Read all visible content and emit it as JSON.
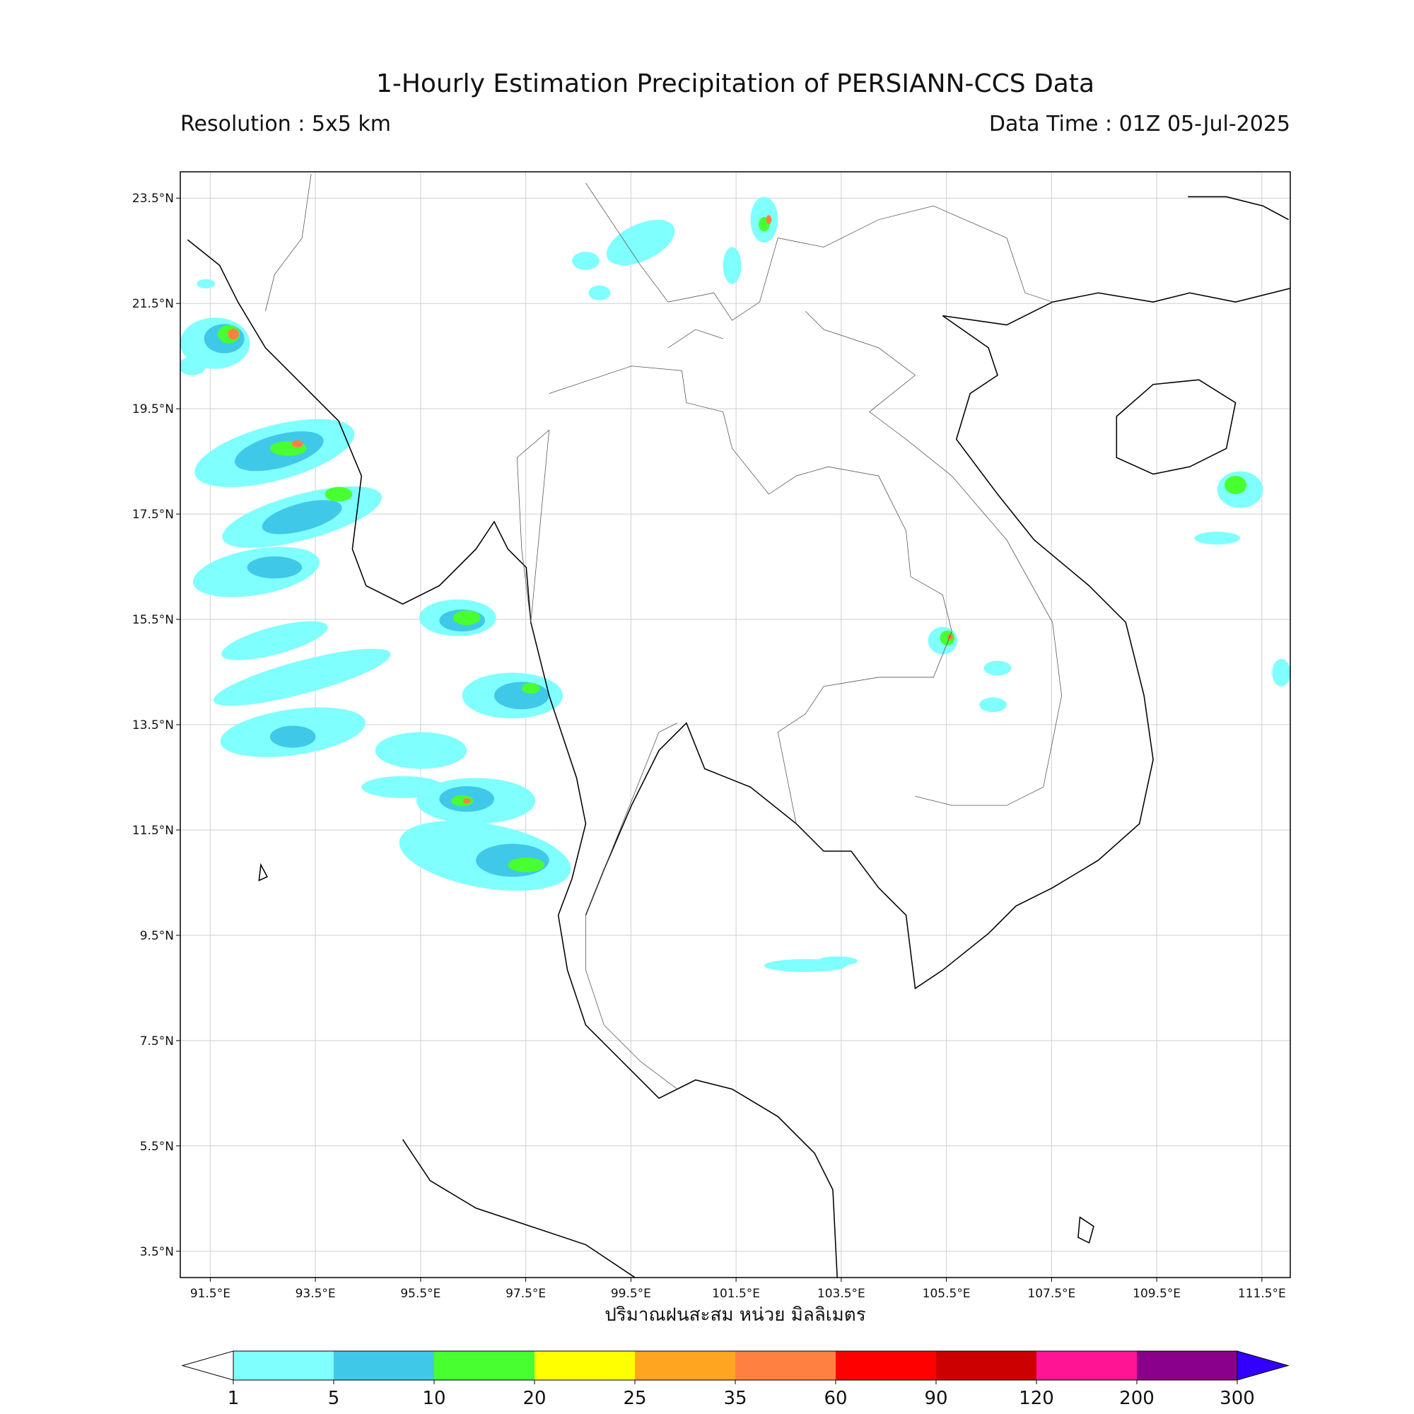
{
  "header": {
    "title": "1-Hourly Estimation Precipitation of PERSIANN-CCS Data",
    "resolution": "Resolution : 5x5 km",
    "data_time": "Data Time : 01Z 05-Jul-2025"
  },
  "map": {
    "xlim": [
      90.93,
      112.04
    ],
    "ylim": [
      3.0,
      24.0
    ],
    "grid": true,
    "xticks": [
      {
        "value": 91.5,
        "label": "91.5°E"
      },
      {
        "value": 93.5,
        "label": "93.5°E"
      },
      {
        "value": 95.5,
        "label": "95.5°E"
      },
      {
        "value": 97.5,
        "label": "97.5°E"
      },
      {
        "value": 99.5,
        "label": "99.5°E"
      },
      {
        "value": 101.5,
        "label": "101.5°E"
      },
      {
        "value": 103.5,
        "label": "103.5°E"
      },
      {
        "value": 105.5,
        "label": "105.5°E"
      },
      {
        "value": 107.5,
        "label": "107.5°E"
      },
      {
        "value": 109.5,
        "label": "109.5°E"
      },
      {
        "value": 111.5,
        "label": "111.5°E"
      }
    ],
    "yticks": [
      {
        "value": 3.5,
        "label": "3.5°N"
      },
      {
        "value": 5.5,
        "label": "5.5°N"
      },
      {
        "value": 7.5,
        "label": "7.5°N"
      },
      {
        "value": 9.5,
        "label": "9.5°N"
      },
      {
        "value": 11.5,
        "label": "11.5°N"
      },
      {
        "value": 13.5,
        "label": "13.5°N"
      },
      {
        "value": 15.5,
        "label": "15.5°N"
      },
      {
        "value": 17.5,
        "label": "17.5°N"
      },
      {
        "value": 19.5,
        "label": "19.5°N"
      },
      {
        "value": 21.5,
        "label": "21.5°N"
      },
      {
        "value": 23.5,
        "label": "23.5°N"
      }
    ],
    "xlabel": "ปริมาณฝนสะสม หน่วย มิลลิเมตร"
  },
  "colorbar": {
    "levels": [
      1,
      5,
      10,
      20,
      25,
      35,
      60,
      90,
      120,
      200,
      300
    ],
    "colors": [
      "#80ffff",
      "#40c8e8",
      "#48ff30",
      "#ffff00",
      "#ffa520",
      "#ff8040",
      "#ff0000",
      "#cc0000",
      "#ff1493",
      "#8b008b"
    ],
    "under_color": "#ffffff",
    "over_color": "#3300ff"
  }
}
